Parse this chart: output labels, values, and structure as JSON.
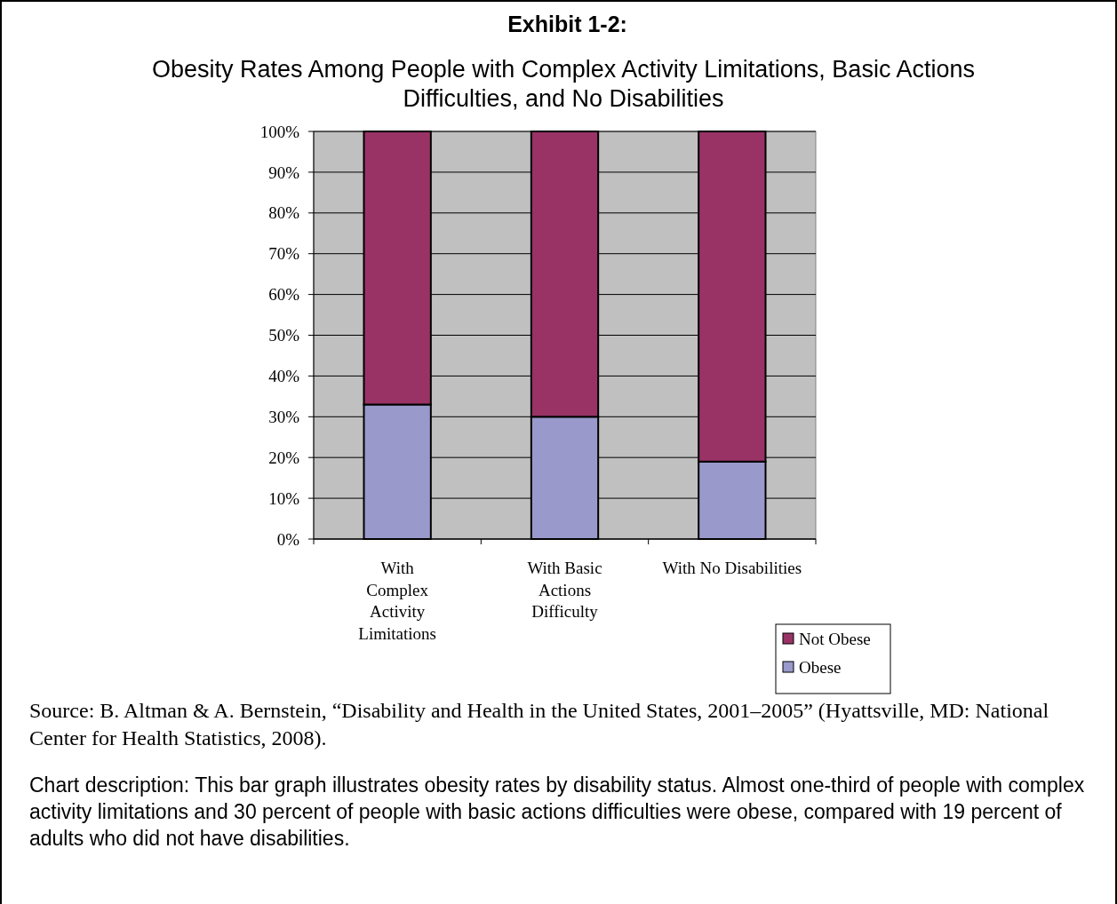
{
  "chart_data": {
    "type": "bar",
    "title": "Exhibit 1-2:",
    "subtitle": "Obesity Rates Among People with Complex Activity Limitations, Basic Actions Difficulties, and No Disabilities",
    "categories": [
      "With Complex Activity Limitations",
      "With Basic Actions Difficulty",
      "With No Disabilities"
    ],
    "series": [
      {
        "name": "Obese",
        "color": "#9999cc",
        "values": [
          33,
          30,
          19
        ]
      },
      {
        "name": "Not Obese",
        "color": "#993366",
        "values": [
          67,
          70,
          81
        ]
      }
    ],
    "stacked": true,
    "ylim": [
      0,
      100
    ],
    "yticks": [
      {
        "value": 0,
        "label": "0%"
      },
      {
        "value": 10,
        "label": "10%"
      },
      {
        "value": 20,
        "label": "20%"
      },
      {
        "value": 30,
        "label": "30%"
      },
      {
        "value": 40,
        "label": "40%"
      },
      {
        "value": 50,
        "label": "50%"
      },
      {
        "value": 60,
        "label": "60%"
      },
      {
        "value": 70,
        "label": "70%"
      },
      {
        "value": 80,
        "label": "80%"
      },
      {
        "value": 90,
        "label": "90%"
      },
      {
        "value": 100,
        "label": "100%"
      }
    ],
    "grid": "y",
    "legend": "bottom right",
    "annotations": [
      "Source: B. Altman & A. Bernstein, “Disability and Health in the United States, 2001–2005” (Hyattsville, MD: National Center for Health Statistics, 2008).",
      "Chart description: This bar graph illustrates obesity rates by disability status. Almost one-third of people with complex activity limitations and 30 percent of people with basic actions difficulties were obese, compared with 19 percent of adults who did not have disabilities."
    ]
  }
}
